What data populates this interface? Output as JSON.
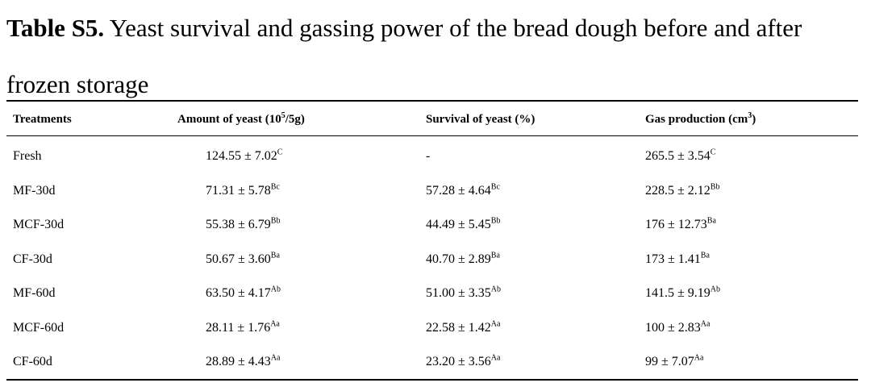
{
  "caption": {
    "label": "Table S5.",
    "text": "Yeast survival and gassing power of the bread dough before and after frozen storage"
  },
  "table": {
    "headers": [
      {
        "text": "Treatments",
        "sup": "",
        "suffix": ""
      },
      {
        "text": "Amount of yeast (10",
        "sup": "5",
        "suffix": "/5g)"
      },
      {
        "text": "Survival of yeast (%)",
        "sup": "",
        "suffix": ""
      },
      {
        "text": "Gas production (cm",
        "sup": "3",
        "suffix": ")"
      }
    ],
    "rows": [
      {
        "treatment": "Fresh",
        "amount": "124.55 ± 7.02",
        "amount_sup": "C",
        "survival": "-",
        "survival_sup": "",
        "gas": "265.5 ± 3.54",
        "gas_sup": "C"
      },
      {
        "treatment": "MF-30d",
        "amount": "71.31 ± 5.78",
        "amount_sup": "Bc",
        "survival": "57.28 ± 4.64",
        "survival_sup": "Bc",
        "gas": "228.5 ± 2.12",
        "gas_sup": "Bb"
      },
      {
        "treatment": "MCF-30d",
        "amount": "55.38 ± 6.79",
        "amount_sup": "Bb",
        "survival": "44.49 ± 5.45",
        "survival_sup": "Bb",
        "gas": "176 ± 12.73",
        "gas_sup": "Ba"
      },
      {
        "treatment": "CF-30d",
        "amount": "50.67 ± 3.60",
        "amount_sup": "Ba",
        "survival": "40.70 ± 2.89",
        "survival_sup": "Ba",
        "gas": "173 ± 1.41",
        "gas_sup": "Ba"
      },
      {
        "treatment": "MF-60d",
        "amount": "63.50 ± 4.17",
        "amount_sup": "Ab",
        "survival": "51.00 ± 3.35",
        "survival_sup": "Ab",
        "gas": "141.5 ± 9.19",
        "gas_sup": "Ab"
      },
      {
        "treatment": "MCF-60d",
        "amount": "28.11 ± 1.76",
        "amount_sup": "Aa",
        "survival": "22.58 ± 1.42",
        "survival_sup": "Aa",
        "gas": "100 ± 2.83",
        "gas_sup": "Aa"
      },
      {
        "treatment": "CF-60d",
        "amount": "28.89 ± 4.43",
        "amount_sup": "Aa",
        "survival": "23.20 ± 3.56",
        "survival_sup": "Aa",
        "gas": "99 ± 7.07",
        "gas_sup": "Aa"
      }
    ]
  }
}
